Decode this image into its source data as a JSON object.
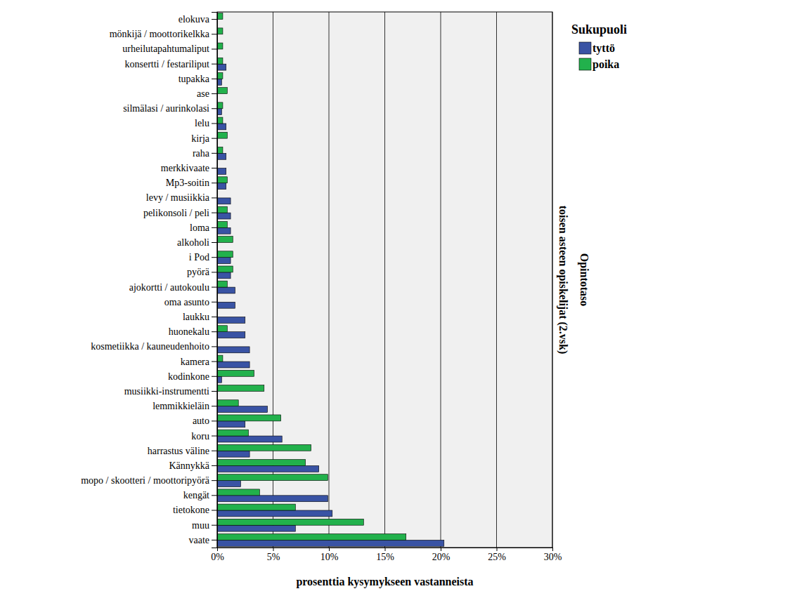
{
  "chart_data": {
    "type": "bar",
    "orientation": "horizontal",
    "xlabel": "prosenttia kysymykseen vastanneista",
    "legend_title": "Sukupuoli",
    "panel_title": "Opintotaso",
    "panel_label": "toisen asteen opiskelijat (2.vsk)",
    "legend": "right",
    "grid": true,
    "categories": [
      "elokuva",
      "mönkijä / moottorikelkka",
      "urheilutapahtumaliput",
      "konsertti / festariliput",
      "tupakka",
      "ase",
      "silmälasi / aurinkolasi",
      "lelu",
      "kirja",
      "raha",
      "merkkivaate",
      "Mp3-soitin",
      "levy / musiikkia",
      "pelikonsoli / peli",
      "loma",
      "alkoholi",
      "i Pod",
      "pyörä",
      "ajokortti / autokoulu",
      "oma asunto",
      "laukku",
      "huonekalu",
      "kosmetiikka / kauneudenhoito",
      "kamera",
      "kodinkone",
      "musiikki-instrumentti",
      "lemmikkieläin",
      "auto",
      "koru",
      "harrastus väline",
      "Kännykkä",
      "mopo / skootteri / moottoripyörä",
      "kengät",
      "tietokone",
      "muu",
      "vaate"
    ],
    "series": [
      {
        "name": "tyttö",
        "color": "#3953a4",
        "values": [
          0,
          0,
          0,
          0.8,
          0.4,
          0,
          0.4,
          0.8,
          0,
          0.8,
          0.8,
          0.8,
          1.2,
          1.2,
          1.2,
          0,
          1.2,
          1.2,
          1.6,
          1.6,
          2.5,
          2.5,
          2.9,
          2.9,
          0.4,
          0,
          4.5,
          2.5,
          5.8,
          2.9,
          9.1,
          2.1,
          9.9,
          10.3,
          7.0,
          20.3
        ]
      },
      {
        "name": "poika",
        "color": "#22b14c",
        "values": [
          0.5,
          0.5,
          0.5,
          0.5,
          0.5,
          0.9,
          0.5,
          0.5,
          0.9,
          0.5,
          0,
          0.9,
          0,
          0.9,
          0.9,
          1.4,
          1.4,
          1.4,
          0.9,
          0,
          0,
          0.9,
          0,
          0.5,
          3.3,
          4.2,
          1.9,
          5.7,
          2.8,
          8.4,
          7.9,
          9.9,
          3.8,
          7.0,
          13.1,
          16.9
        ]
      }
    ],
    "xlim": [
      0,
      30
    ],
    "xticks": [
      {
        "value": 0,
        "label": "0%"
      },
      {
        "value": 5,
        "label": "5%"
      },
      {
        "value": 10,
        "label": "10%"
      },
      {
        "value": 15,
        "label": "15%"
      },
      {
        "value": 20,
        "label": "20%"
      },
      {
        "value": 25,
        "label": "25%"
      },
      {
        "value": 30,
        "label": "30%"
      }
    ]
  }
}
